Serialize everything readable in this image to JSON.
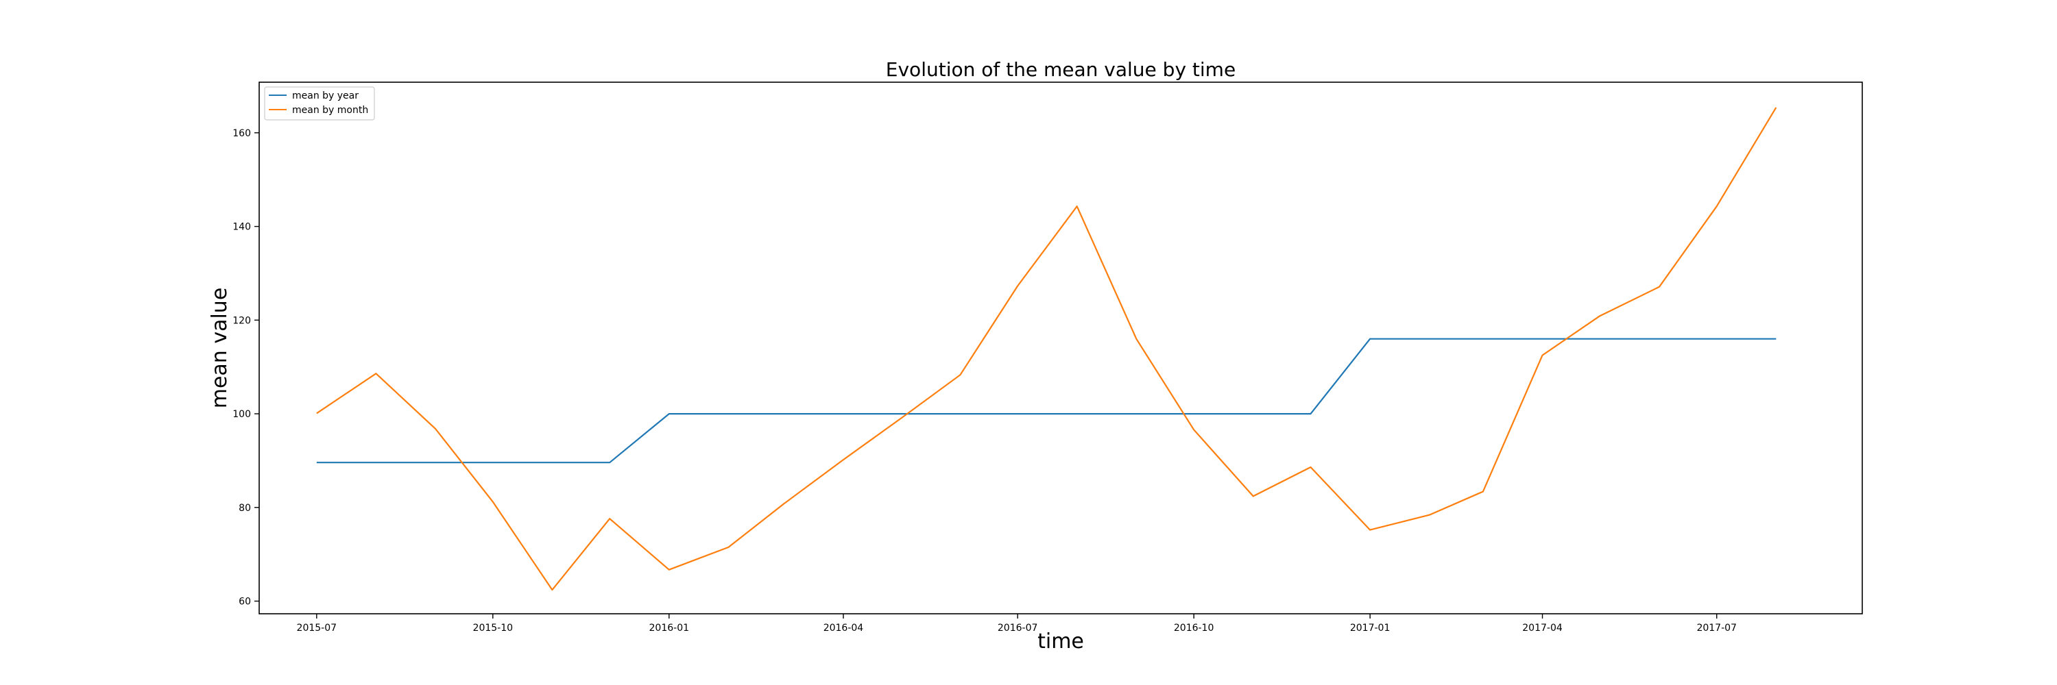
{
  "chart_data": {
    "type": "line",
    "title": "Evolution of the mean value by time",
    "xlabel": "time",
    "ylabel": "mean value",
    "ylim": [
      57.3,
      170.8
    ],
    "xlim": [
      "2015-06-01",
      "2017-09-15"
    ],
    "x": [
      "2015-07-01",
      "2015-08-01",
      "2015-09-01",
      "2015-10-01",
      "2015-11-01",
      "2015-12-01",
      "2016-01-01",
      "2016-02-01",
      "2016-03-01",
      "2016-04-01",
      "2016-05-01",
      "2016-06-01",
      "2016-07-01",
      "2016-08-01",
      "2016-09-01",
      "2016-10-01",
      "2016-11-01",
      "2016-12-01",
      "2017-01-01",
      "2017-02-01",
      "2017-03-01",
      "2017-04-01",
      "2017-05-01",
      "2017-06-01",
      "2017-07-01",
      "2017-08-01"
    ],
    "x_ticks": [
      {
        "date": "2015-07-01",
        "label": "2015-07"
      },
      {
        "date": "2015-10-01",
        "label": "2015-10"
      },
      {
        "date": "2016-01-01",
        "label": "2016-01"
      },
      {
        "date": "2016-04-01",
        "label": "2016-04"
      },
      {
        "date": "2016-07-01",
        "label": "2016-07"
      },
      {
        "date": "2016-10-01",
        "label": "2016-10"
      },
      {
        "date": "2017-01-01",
        "label": "2017-01"
      },
      {
        "date": "2017-04-01",
        "label": "2017-04"
      },
      {
        "date": "2017-07-01",
        "label": "2017-07"
      }
    ],
    "y_ticks": [
      60,
      80,
      100,
      120,
      140,
      160
    ],
    "grid": false,
    "legend": "upper left",
    "series": [
      {
        "name": "mean by year",
        "color": "#1f77b4",
        "values": [
          89.6,
          89.6,
          89.6,
          89.6,
          89.6,
          89.6,
          100,
          100,
          100,
          100,
          100,
          100,
          100,
          100,
          100,
          100,
          100,
          100,
          116,
          116,
          116,
          116,
          116,
          116,
          116,
          116
        ]
      },
      {
        "name": "mean by month",
        "color": "#ff7f0e",
        "values": [
          100.1,
          108.6,
          96.8,
          81.2,
          62.4,
          77.6,
          66.7,
          71.5,
          80.8,
          90.2,
          99.0,
          108.3,
          127.3,
          144.3,
          116.0,
          96.6,
          82.4,
          88.6,
          75.2,
          78.4,
          83.4,
          112.5,
          120.9,
          127.1,
          144.3,
          165.4
        ]
      }
    ]
  }
}
